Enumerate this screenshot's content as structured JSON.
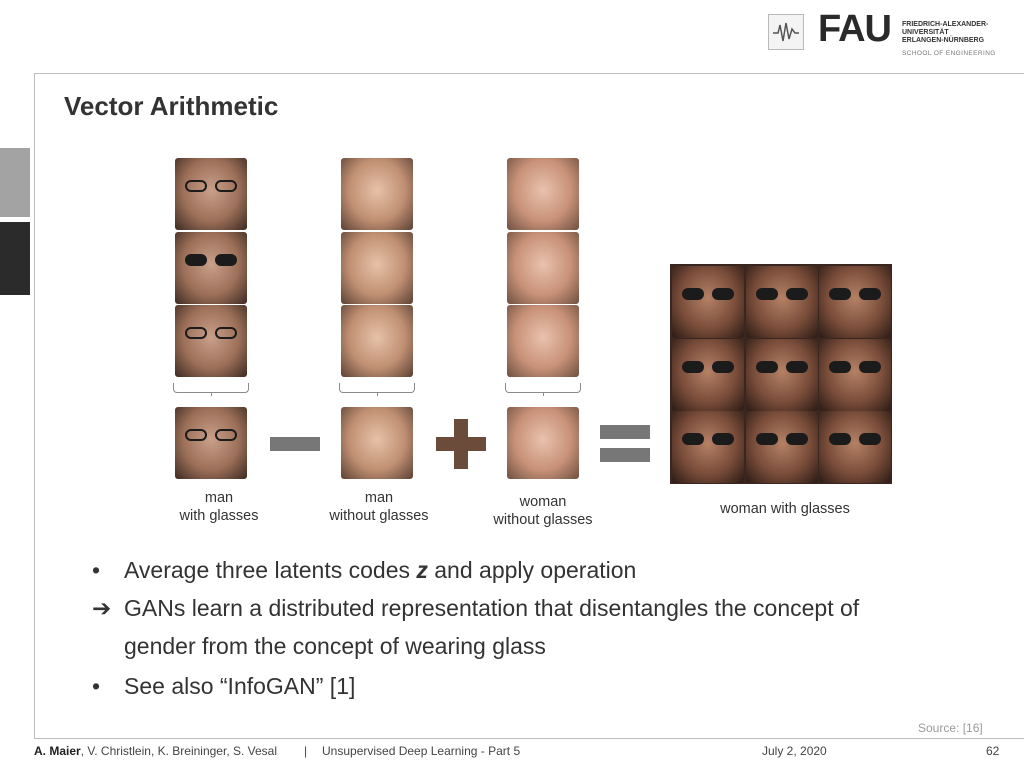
{
  "header": {
    "logo_icon": "waveform-icon",
    "fau_word": "FAU",
    "fau_sub_lines": [
      "FRIEDRICH-ALEXANDER-",
      "UNIVERSITÄT",
      "ERLANGEN-NÜRNBERG"
    ],
    "school": "SCHOOL OF ENGINEERING"
  },
  "slide": {
    "title": "Vector Arithmetic",
    "captions": {
      "man_glasses": [
        "man",
        "with glasses"
      ],
      "man_no_glasses": [
        "man",
        "without glasses"
      ],
      "woman_no_glasses": [
        "woman",
        "without glasses"
      ],
      "result": "woman with glasses"
    },
    "bullets": [
      {
        "marker": "•",
        "text_before": "Average three latents codes ",
        "emph": "z",
        "text_after": " and apply operation"
      },
      {
        "marker": "➔",
        "line1": "GANs learn a distributed representation that disentangles the concept of",
        "line2": "gender from the concept of wearing glass"
      },
      {
        "marker": "•",
        "text": "See also “InfoGAN” [1]"
      }
    ],
    "source": "Source: [16]"
  },
  "footer": {
    "author_bold": "A. Maier",
    "authors_rest": ", V. Christlein, K. Breininger, S. Vesal",
    "separator": "|",
    "course": "Unsupervised Deep Learning - Part 5",
    "date": "July 2, 2020",
    "page": "62"
  }
}
